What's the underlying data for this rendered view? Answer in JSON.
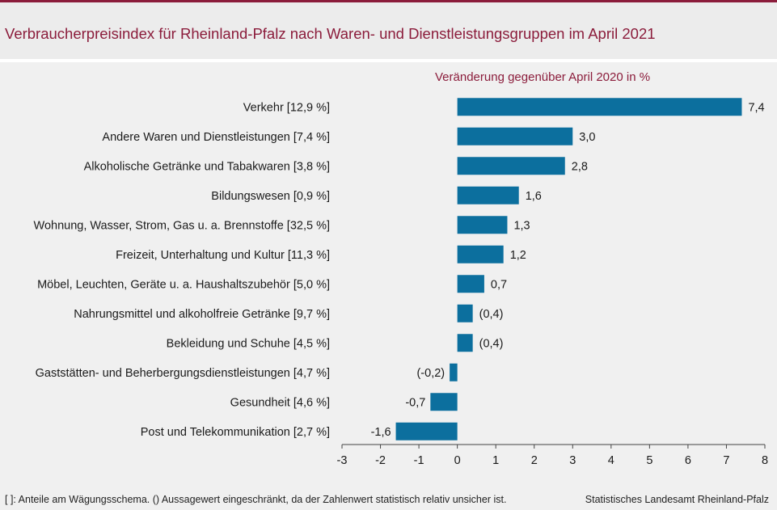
{
  "header": {
    "title": "Verbraucherpreisindex für Rheinland-Pfalz nach Waren- und Dienstleistungsgruppen im April 2021"
  },
  "chart_data": {
    "type": "bar",
    "orientation": "horizontal",
    "subtitle": "Veränderung  gegenüber  April 2020 in %",
    "categories": [
      "Verkehr [12,9 %]",
      "Andere Waren und Dienstleistungen [7,4 %]",
      "Alkoholische Getränke und Tabakwaren [3,8 %]",
      "Bildungswesen [0,9 %]",
      "Wohnung, Wasser, Strom, Gas u. a. Brennstoffe [32,5 %]",
      "Freizeit, Unterhaltung und Kultur [11,3 %]",
      "Möbel, Leuchten, Geräte u. a. Haushaltszubehör  [5,0 %]",
      "Nahrungsmittel und alkoholfreie Getränke [9,7 %]",
      "Bekleidung und Schuhe [4,5 %]",
      "Gaststätten- und Beherbergungsdienstleistungen [4,7 %]",
      "Gesundheit [4,6 %]",
      "Post und Telekommunikation [2,7 %]"
    ],
    "values": [
      7.4,
      3.0,
      2.8,
      1.6,
      1.3,
      1.2,
      0.7,
      0.4,
      0.4,
      -0.2,
      -0.7,
      -1.6
    ],
    "value_labels": [
      "7,4",
      "3,0",
      "2,8",
      "1,6",
      "1,3",
      "1,2",
      "0,7",
      "(0,4)",
      "(0,4)",
      "(-0,2)",
      "-0,7",
      "-1,6"
    ],
    "xlim": [
      -3,
      8
    ],
    "xticks": [
      -3,
      -2,
      -1,
      0,
      1,
      2,
      3,
      4,
      5,
      6,
      7,
      8
    ],
    "xtick_labels": [
      "-3",
      "-2",
      "-1",
      "0",
      "1",
      "2",
      "3",
      "4",
      "5",
      "6",
      "7",
      "8"
    ],
    "grid": false,
    "bar_color": "#0c6f9e"
  },
  "footer": {
    "note": "[ ]: Anteile am Wägungsschema. () Aussagewert eingeschränkt, da der Zahlenwert  statistisch relativ unsicher ist.",
    "source": "Statistisches Landesamt Rheinland-Pfalz"
  }
}
